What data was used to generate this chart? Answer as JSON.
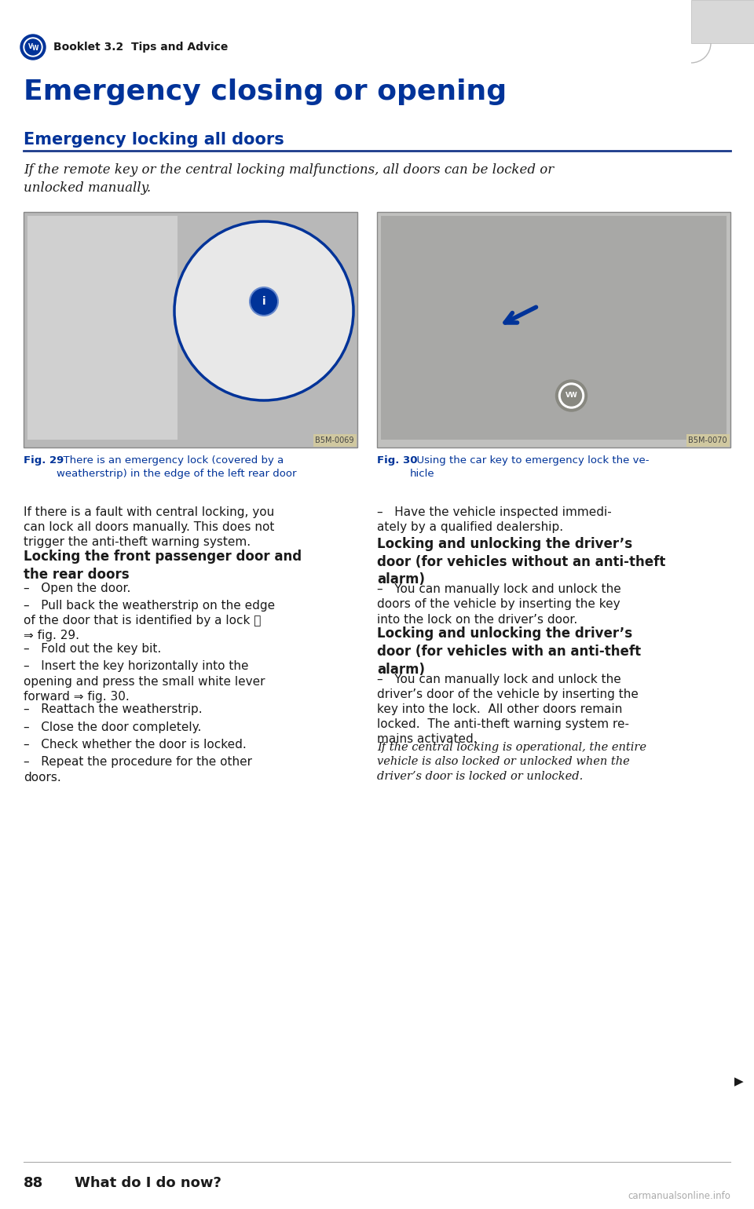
{
  "bg_color": "#ffffff",
  "page_width": 9.6,
  "page_height": 15.4,
  "header_text": "Booklet 3.2  Tips and Advice",
  "main_title": "Emergency closing or opening",
  "section_title": "Emergency locking all doors",
  "intro_italic": "If the remote key or the central locking malfunctions, all doors can be locked or\nunlocked manually.",
  "fig29_caption_bold": "Fig. 29",
  "fig29_caption_rest": "  There is an emergency lock (covered by a\nweatherstrip) in the edge of the left rear door",
  "fig30_caption_bold": "Fig. 30",
  "fig30_caption_rest": "  Using the car key to emergency lock the ve-\nhicle",
  "fig29_code": "B5M-0069",
  "fig30_code": "B5M-0070",
  "left_col_text": [
    "NORMAL:If there is a fault with central locking, you\ncan lock all doors manually. This does not\ntrigger the anti-theft warning system.",
    "BOLD:Locking the front passenger door and\nthe rear doors",
    "DASH:–   Open the door.",
    "DASH:–   Pull back the weatherstrip on the edge\nof the door that is identified by a lock Ⓐ\n⇒ fig. 29.",
    "DASH:–   Fold out the key bit.",
    "DASH:–   Insert the key horizontally into the\nopening and press the small white lever\nforward ⇒ fig. 30.",
    "DASH:–   Reattach the weatherstrip.",
    "DASH:–   Close the door completely.",
    "DASH:–   Check whether the door is locked.",
    "DASH:–   Repeat the procedure for the other\ndoors."
  ],
  "right_col_text": [
    "DASH:–   Have the vehicle inspected immedi-\nately by a qualified dealership.",
    "BOLD:Locking and unlocking the driver’s\ndoor (for vehicles without an anti-theft\nalarm)",
    "DASH:–   You can manually lock and unlock the\ndoors of the vehicle by inserting the key\ninto the lock on the driver’s door.",
    "BOLD:Locking and unlocking the driver’s\ndoor (for vehicles with an anti-theft\nalarm)",
    "DASH:–   You can manually lock and unlock the\ndriver’s door of the vehicle by inserting the\nkey into the lock.  All other doors remain\nlocked.  The anti-theft warning system re-\nmains activated.",
    "ITALIC:If the central locking is operational, the entire\nvehicle is also locked or unlocked when the\ndriver’s door is locked or unlocked."
  ],
  "footer_page": "88",
  "footer_text": "What do I do now?",
  "watermark": "carmanualsonline.info",
  "blue_dark": "#003399",
  "text_black": "#1a1a1a",
  "line_blue": "#1a3a8a",
  "header_font_size": 10,
  "main_title_font_size": 26,
  "section_title_font_size": 15,
  "intro_font_size": 12,
  "body_font_size": 11,
  "caption_font_size": 9.5,
  "footer_font_size": 13
}
